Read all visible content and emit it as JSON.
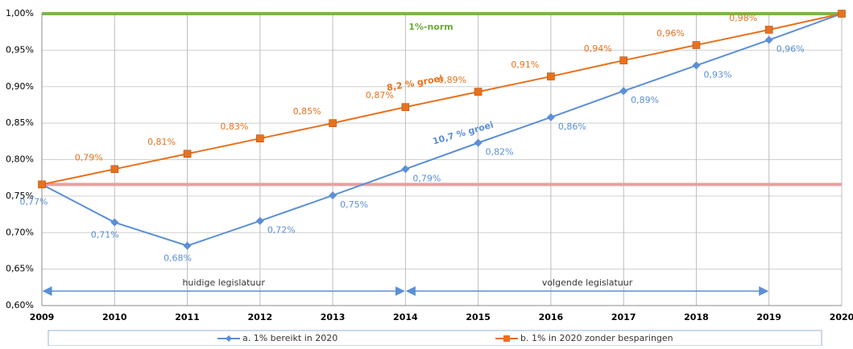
{
  "chart_data": {
    "type": "line",
    "x": [
      2009,
      2010,
      2011,
      2012,
      2013,
      2014,
      2015,
      2016,
      2017,
      2018,
      2019,
      2020
    ],
    "series": [
      {
        "name": "a. 1% bereikt in 2020",
        "color": "#5b8fd6",
        "marker": "diamond",
        "values": [
          0.766,
          0.714,
          0.682,
          0.716,
          0.751,
          0.787,
          0.823,
          0.858,
          0.894,
          0.929,
          0.964,
          1.0
        ],
        "value_labels": [
          "0,77%",
          "0,71%",
          "0,68%",
          "0,72%",
          "0,75%",
          "0,79%",
          "0,82%",
          "0,86%",
          "0,89%",
          "0,93%",
          "0,96%",
          null
        ]
      },
      {
        "name": "b. 1% in 2020 zonder besparingen",
        "color": "#e8711e",
        "marker": "square",
        "values": [
          0.766,
          0.787,
          0.808,
          0.829,
          0.85,
          0.872,
          0.893,
          0.914,
          0.936,
          0.957,
          0.978,
          1.0
        ],
        "value_labels": [
          null,
          "0,79%",
          "0,81%",
          "0,83%",
          "0,85%",
          "0,87%",
          "0,89%",
          "0,91%",
          "0,94%",
          "0,96%",
          "0,98%",
          null
        ]
      }
    ],
    "xlim": [
      2009,
      2020
    ],
    "xticks": [
      2009,
      2010,
      2011,
      2012,
      2013,
      2014,
      2015,
      2016,
      2017,
      2018,
      2019,
      2020
    ],
    "ylim": [
      0.6,
      1.0
    ],
    "yticks": [
      {
        "value": 0.6,
        "label": "0,60%"
      },
      {
        "value": 0.65,
        "label": "0,65%"
      },
      {
        "value": 0.7,
        "label": "0,70%"
      },
      {
        "value": 0.75,
        "label": "0,75%"
      },
      {
        "value": 0.8,
        "label": "0,80%"
      },
      {
        "value": 0.85,
        "label": "0,85%"
      },
      {
        "value": 0.9,
        "label": "0,90%"
      },
      {
        "value": 0.95,
        "label": "0,95%"
      },
      {
        "value": 1.0,
        "label": "1,00%"
      }
    ],
    "grid": true,
    "reference_lines": [
      {
        "value": 1.0,
        "color": "#7ab648"
      },
      {
        "value": 0.766,
        "color": "#e8a0a0"
      }
    ],
    "annotations": [
      {
        "text": "1%-norm",
        "color": "#6aaa3a"
      },
      {
        "text": "8,2 % groei",
        "color": "#e8711e"
      },
      {
        "text": "10,7 % groei",
        "color": "#5b8fd6"
      }
    ],
    "periods": [
      {
        "label": "huidige legislatuur",
        "x": [
          2009,
          2014
        ]
      },
      {
        "label": "volgende legislatuur",
        "x": [
          2014,
          2019
        ]
      }
    ],
    "legend": "bottom"
  }
}
